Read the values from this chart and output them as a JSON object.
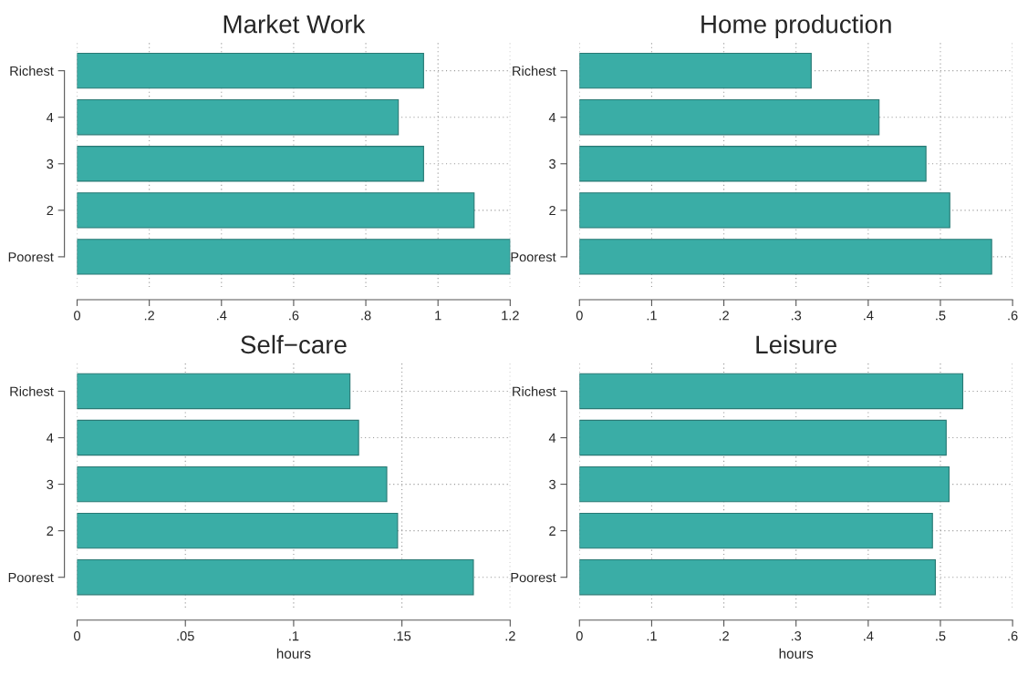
{
  "chart_data": [
    {
      "type": "bar",
      "orientation": "horizontal",
      "title": "Market Work",
      "categories": [
        "Richest",
        "4",
        "3",
        "2",
        "Poorest"
      ],
      "values": [
        0.96,
        0.89,
        0.96,
        1.1,
        1.2
      ],
      "color": "#3aada6",
      "xlim": [
        0,
        1.2
      ],
      "xticks": [
        0,
        {
          "value": 0.2,
          "label": ".2"
        },
        {
          "value": 0.4,
          "label": ".4"
        },
        {
          "value": 0.6,
          "label": ".6"
        },
        {
          "value": 0.8,
          "label": ".8"
        },
        1,
        1.2
      ],
      "grid": true
    },
    {
      "type": "bar",
      "orientation": "horizontal",
      "title": "Home production",
      "categories": [
        "Richest",
        "4",
        "3",
        "2",
        "Poorest"
      ],
      "values": [
        0.321,
        0.415,
        0.48,
        0.513,
        0.571
      ],
      "color": "#3aada6",
      "xlim": [
        0,
        0.6
      ],
      "xticks": [
        0,
        {
          "value": 0.1,
          "label": ".1"
        },
        {
          "value": 0.2,
          "label": ".2"
        },
        {
          "value": 0.3,
          "label": ".3"
        },
        {
          "value": 0.4,
          "label": ".4"
        },
        {
          "value": 0.5,
          "label": ".5"
        },
        {
          "value": 0.6,
          "label": ".6"
        }
      ],
      "grid": true
    },
    {
      "type": "bar",
      "orientation": "horizontal",
      "title": "Self−care",
      "xlabel": "hours",
      "categories": [
        "Richest",
        "4",
        "3",
        "2",
        "Poorest"
      ],
      "values": [
        0.126,
        0.13,
        0.143,
        0.148,
        0.183
      ],
      "color": "#3aada6",
      "xlim": [
        0,
        0.2
      ],
      "xticks": [
        0,
        {
          "value": 0.05,
          "label": ".05"
        },
        {
          "value": 0.1,
          "label": ".1"
        },
        {
          "value": 0.15,
          "label": ".15"
        },
        {
          "value": 0.2,
          "label": ".2"
        }
      ],
      "grid": true
    },
    {
      "type": "bar",
      "orientation": "horizontal",
      "title": "Leisure",
      "xlabel": "hours",
      "categories": [
        "Richest",
        "4",
        "3",
        "2",
        "Poorest"
      ],
      "values": [
        0.531,
        0.508,
        0.512,
        0.489,
        0.493
      ],
      "color": "#3aada6",
      "xlim": [
        0,
        0.6
      ],
      "xticks": [
        0,
        {
          "value": 0.1,
          "label": ".1"
        },
        {
          "value": 0.2,
          "label": ".2"
        },
        {
          "value": 0.3,
          "label": ".3"
        },
        {
          "value": 0.4,
          "label": ".4"
        },
        {
          "value": 0.5,
          "label": ".5"
        },
        {
          "value": 0.6,
          "label": ".6"
        }
      ],
      "grid": true
    }
  ]
}
